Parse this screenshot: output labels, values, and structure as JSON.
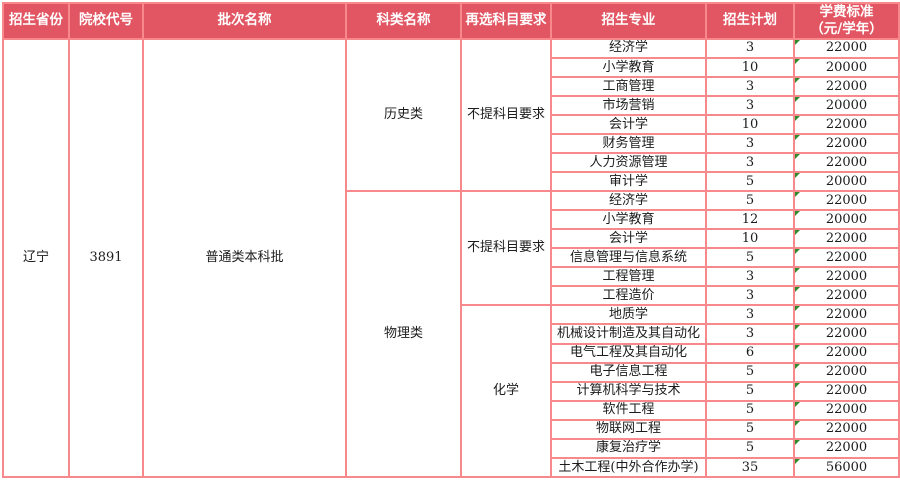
{
  "table": {
    "headers": [
      "招生省份",
      "院校代号",
      "批次名称",
      "科类名称",
      "再选科目要求",
      "招生专业",
      "招生计划",
      "学费标准\n（元/学年）"
    ],
    "record": {
      "province": "辽宁",
      "college_code": "3891",
      "batch": "普通类本科批"
    },
    "groups": [
      {
        "subject_category": "历史类",
        "sub_groups": [
          {
            "requirement": "不提科目要求",
            "majors": [
              {
                "major": "经济学",
                "plan": "3",
                "fee": "22000"
              },
              {
                "major": "小学教育",
                "plan": "10",
                "fee": "20000"
              },
              {
                "major": "工商管理",
                "plan": "3",
                "fee": "22000"
              },
              {
                "major": "市场营销",
                "plan": "3",
                "fee": "20000"
              },
              {
                "major": "会计学",
                "plan": "10",
                "fee": "22000"
              },
              {
                "major": "财务管理",
                "plan": "3",
                "fee": "22000"
              },
              {
                "major": "人力资源管理",
                "plan": "3",
                "fee": "22000"
              },
              {
                "major": "审计学",
                "plan": "5",
                "fee": "20000"
              }
            ]
          }
        ]
      },
      {
        "subject_category": "物理类",
        "sub_groups": [
          {
            "requirement": "不提科目要求",
            "majors": [
              {
                "major": "经济学",
                "plan": "5",
                "fee": "22000"
              },
              {
                "major": "小学教育",
                "plan": "12",
                "fee": "20000"
              },
              {
                "major": "会计学",
                "plan": "10",
                "fee": "22000"
              },
              {
                "major": "信息管理与信息系统",
                "plan": "5",
                "fee": "22000"
              },
              {
                "major": "工程管理",
                "plan": "3",
                "fee": "22000"
              },
              {
                "major": "工程造价",
                "plan": "3",
                "fee": "22000"
              }
            ]
          },
          {
            "requirement": "化学",
            "majors": [
              {
                "major": "地质学",
                "plan": "3",
                "fee": "22000"
              },
              {
                "major": "机械设计制造及其自动化",
                "plan": "3",
                "fee": "22000"
              },
              {
                "major": "电气工程及其自动化",
                "plan": "6",
                "fee": "22000"
              },
              {
                "major": "电子信息工程",
                "plan": "5",
                "fee": "22000"
              },
              {
                "major": "计算机科学与技术",
                "plan": "5",
                "fee": "22000"
              },
              {
                "major": "软件工程",
                "plan": "5",
                "fee": "22000"
              },
              {
                "major": "物联网工程",
                "plan": "5",
                "fee": "22000"
              },
              {
                "major": "康复治疗学",
                "plan": "5",
                "fee": "22000"
              },
              {
                "major": "土木工程(中外合作办学)",
                "plan": "35",
                "fee": "56000"
              }
            ]
          }
        ]
      }
    ],
    "colors": {
      "header_bg": "#e25663",
      "header_text": "#ffffff",
      "grid_border": "#f7888c",
      "cell_text": "#1c1c1c",
      "comment_marker": "#2e8b2e"
    },
    "icons": {
      "fee_cell_marker": "excel-comment-triangle-icon"
    }
  }
}
